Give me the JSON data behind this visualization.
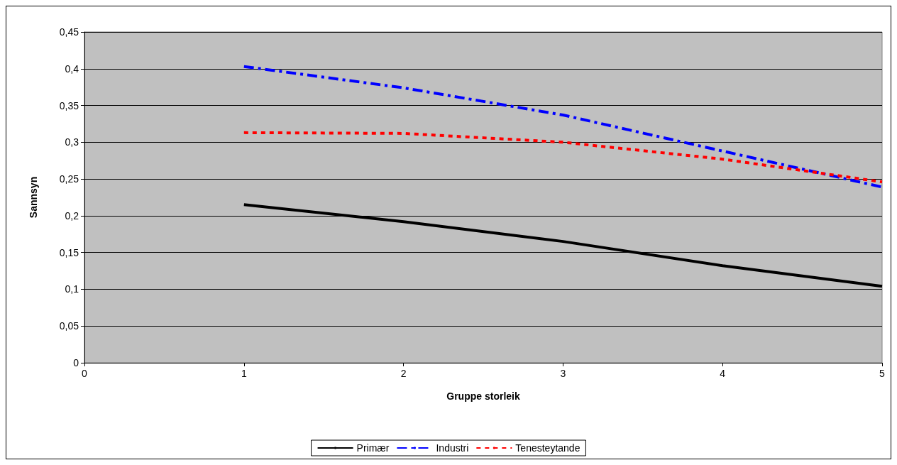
{
  "chart_data": {
    "type": "line",
    "xlabel": "Gruppe storleik",
    "ylabel": "Sannsyn",
    "x": [
      1,
      2,
      3,
      4,
      5
    ],
    "series": [
      {
        "name": "Primær",
        "color": "#000000",
        "line_style": "solid",
        "values": [
          0.215,
          0.192,
          0.165,
          0.132,
          0.104
        ]
      },
      {
        "name": "Industri",
        "color": "#0000ff",
        "line_style": "dashed",
        "values": [
          0.403,
          0.374,
          0.337,
          0.288,
          0.239
        ]
      },
      {
        "name": "Tenesteytande",
        "color": "#ff0000",
        "line_style": "dotted",
        "values": [
          0.313,
          0.312,
          0.3,
          0.277,
          0.246
        ]
      }
    ],
    "xlim": [
      0,
      5
    ],
    "xticks": [
      0,
      1,
      2,
      3,
      4,
      5
    ],
    "ylim": [
      0,
      0.45
    ],
    "yticks": [
      0,
      {
        "value": 0.05,
        "label": "0,05"
      },
      {
        "value": 0.1,
        "label": "0,1"
      },
      {
        "value": 0.15,
        "label": "0,15"
      },
      {
        "value": 0.2,
        "label": "0,2"
      },
      {
        "value": 0.25,
        "label": "0,25"
      },
      {
        "value": 0.3,
        "label": "0,3"
      },
      {
        "value": 0.35,
        "label": "0,35"
      },
      {
        "value": 0.4,
        "label": "0,4"
      },
      {
        "value": 0.45,
        "label": "0,45"
      }
    ],
    "grid": "y",
    "legend": "bottom",
    "marker": "none"
  }
}
